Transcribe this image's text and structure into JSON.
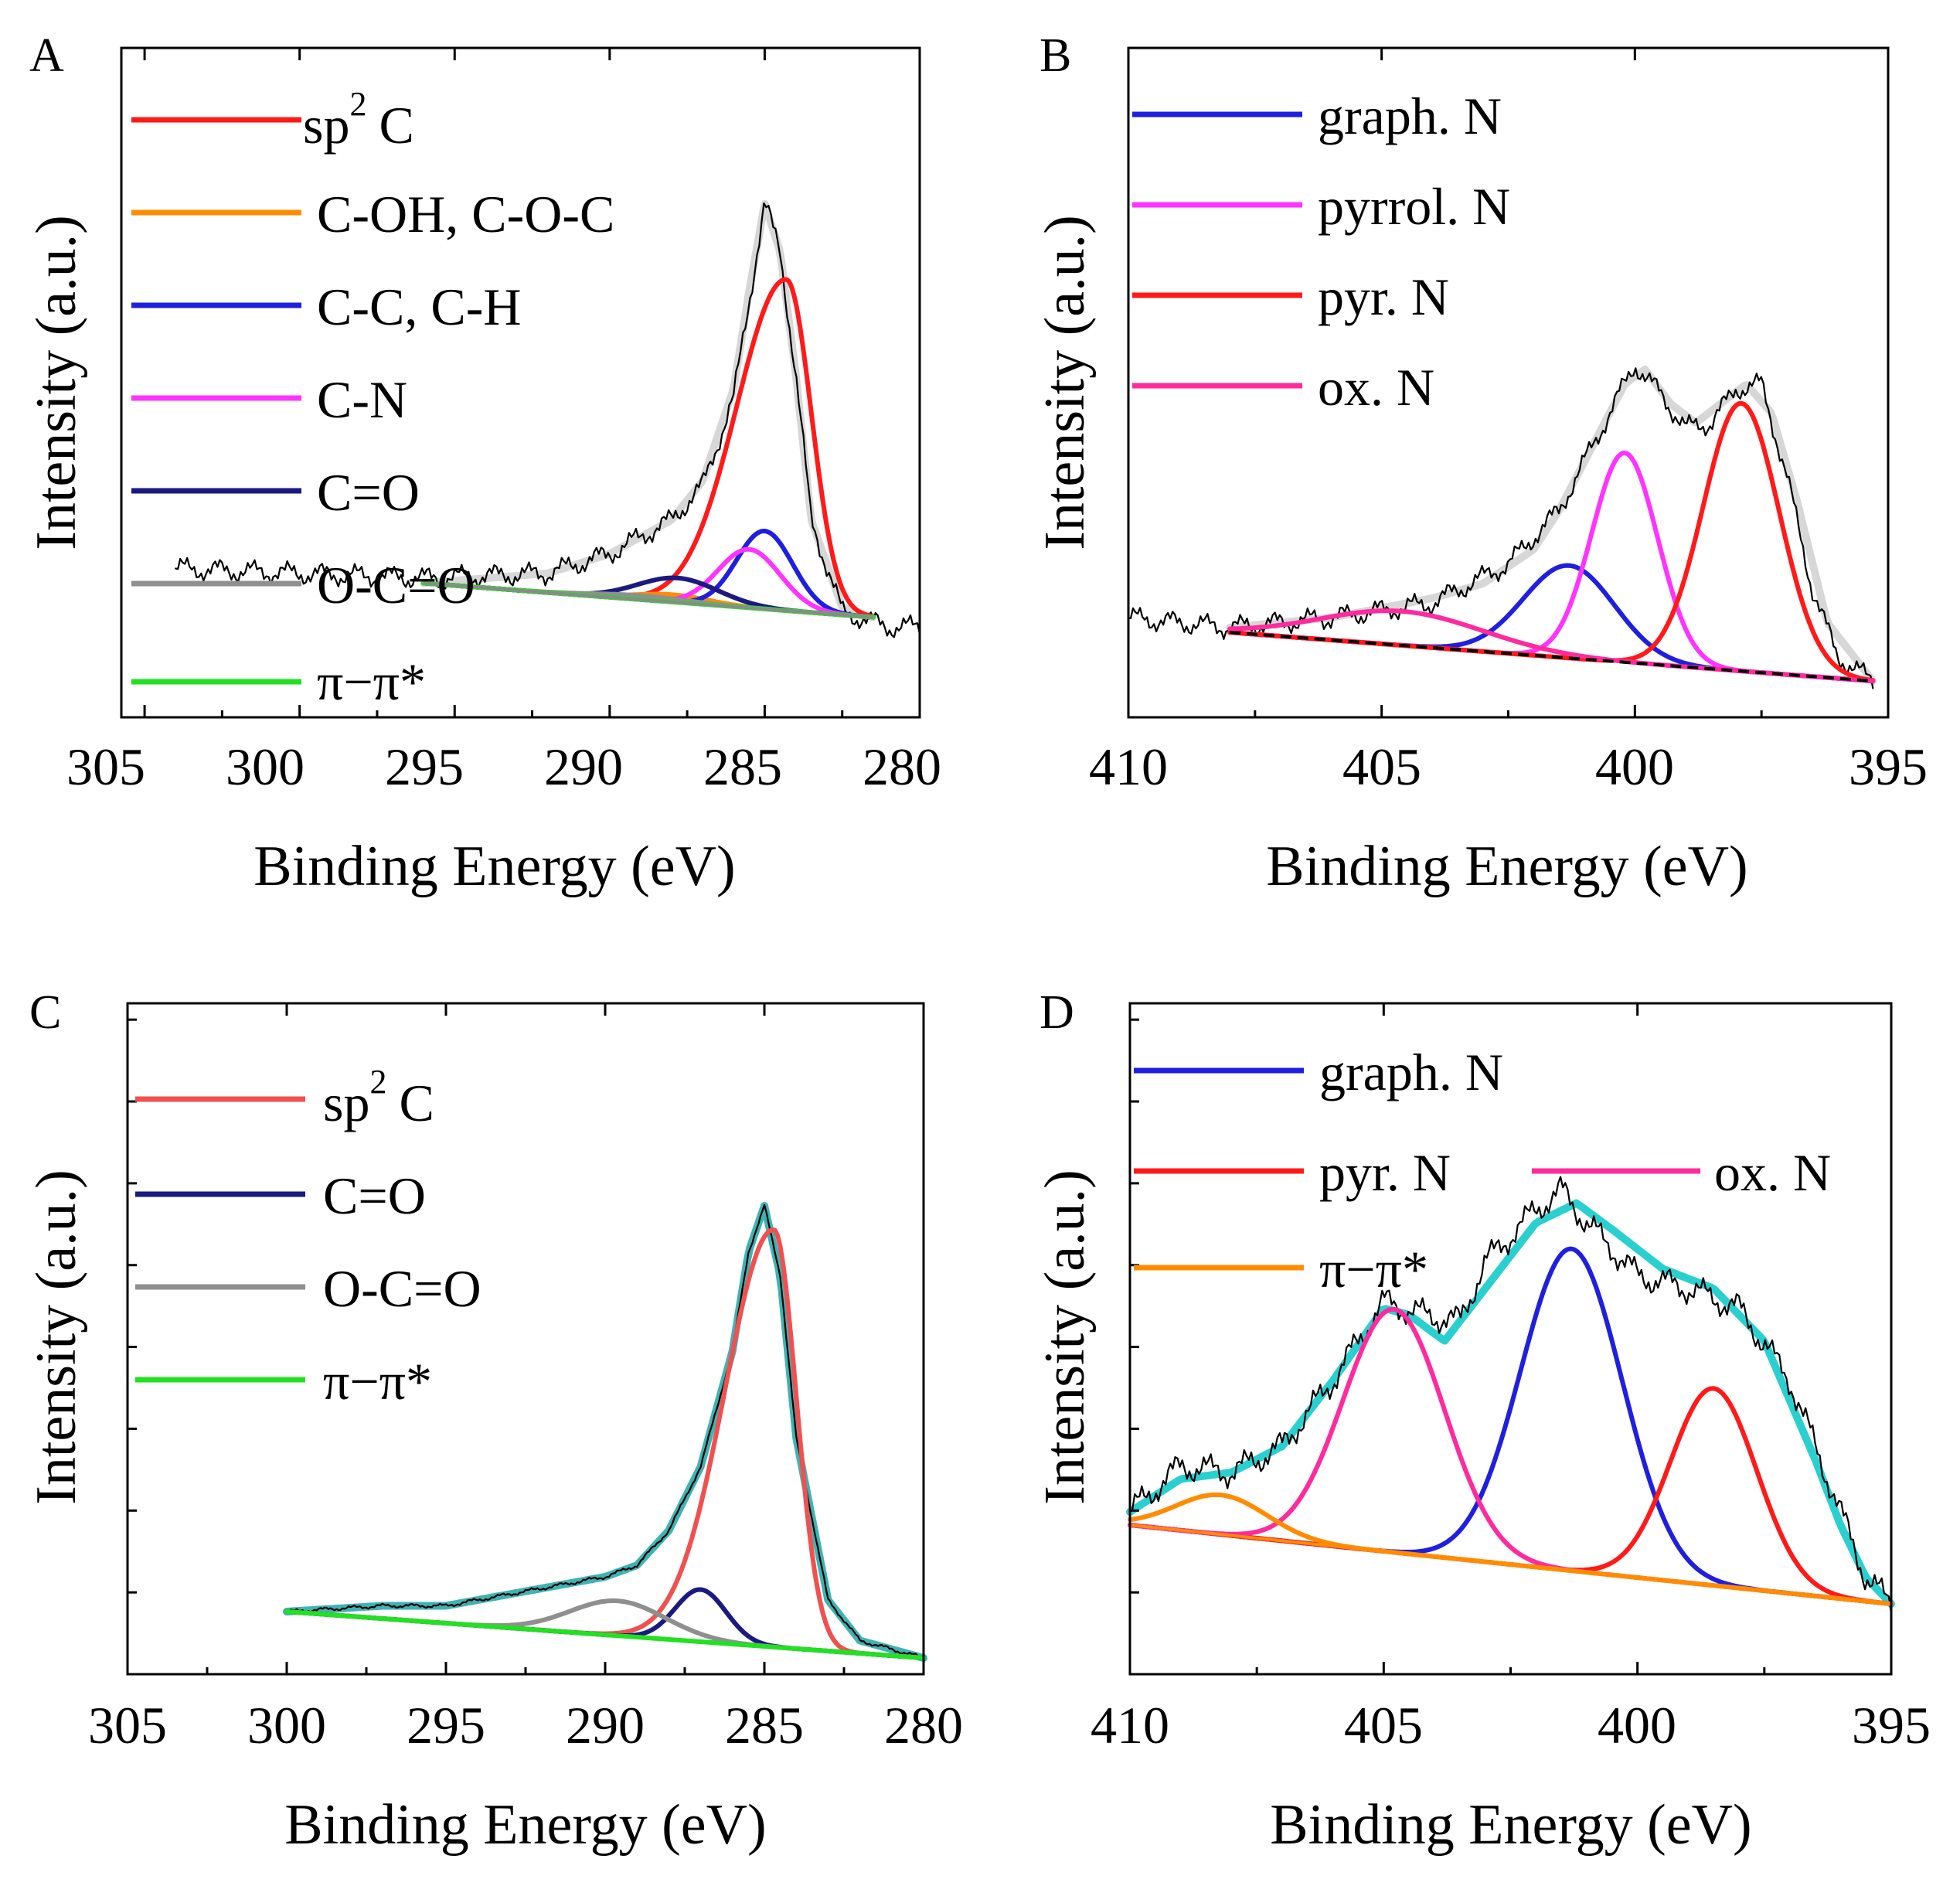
{
  "chart_data": [
    {
      "panel": "A",
      "type": "line",
      "xlabel": "Binding Energy (eV)",
      "ylabel": "Intensity (a.u.)",
      "xlim": [
        305,
        280
      ],
      "ylim": [
        0,
        100
      ],
      "xticks": [
        "305",
        "300",
        "295",
        "290",
        "285",
        "280"
      ],
      "background": {
        "from": [
          296,
          12
        ],
        "to": [
          281.5,
          5
        ],
        "color": "#8a8a8a"
      },
      "raw": {
        "x_start": 304,
        "x_end": 280,
        "color": "#000000",
        "points": [
          [
            304,
            15
          ],
          [
            296,
            13
          ],
          [
            292,
            14
          ],
          [
            290,
            18
          ],
          [
            288,
            25
          ],
          [
            287,
            32
          ],
          [
            286,
            50
          ],
          [
            285.5,
            70
          ],
          [
            285,
            90
          ],
          [
            284.5,
            80
          ],
          [
            284,
            55
          ],
          [
            283.5,
            25
          ],
          [
            282.5,
            6
          ],
          [
            281,
            3
          ],
          [
            280,
            3
          ]
        ]
      },
      "envelope": {
        "x_start": 296,
        "x_end": 281.5,
        "color": "#d7d7d7",
        "points": [
          [
            296,
            12
          ],
          [
            292,
            14
          ],
          [
            290,
            18
          ],
          [
            288,
            25
          ],
          [
            287,
            33
          ],
          [
            286,
            52
          ],
          [
            285.5,
            72
          ],
          [
            285,
            90
          ],
          [
            284.5,
            80
          ],
          [
            284,
            55
          ],
          [
            283.5,
            25
          ],
          [
            282.5,
            7
          ],
          [
            281.5,
            5
          ]
        ]
      },
      "legend_labels": [
        "sp",
        "2",
        "C",
        "C-OH, C-O-C",
        "C-C, C-H",
        "C-N",
        "C=O",
        "O-C=O",
        "π−π*"
      ],
      "series": [
        {
          "name": "sp2 C",
          "color": "#ff1a1a",
          "center": 284.3,
          "amp": 68,
          "width": 0.8,
          "asym": 2.0
        },
        {
          "name": "C-OH, C-O-C",
          "color": "#ff8c00",
          "center": 288.0,
          "amp": 1.5,
          "width": 1.2
        },
        {
          "name": "C-C, C-H",
          "color": "#1f1fe0",
          "center": 285.0,
          "amp": 16,
          "width": 0.9
        },
        {
          "name": "C-N",
          "color": "#ff33ff",
          "center": 285.5,
          "amp": 12,
          "width": 1.0
        },
        {
          "name": "C=O",
          "color": "#1a1a80",
          "center": 287.8,
          "amp": 5,
          "width": 1.3
        },
        {
          "name": "O-C=O",
          "color": "#8f8f8f",
          "center": 289.0,
          "amp": 0.8,
          "width": 1.5
        },
        {
          "name": "π−π*",
          "color": "#22e022",
          "center": 292.0,
          "amp": 0,
          "width": 1.0
        }
      ]
    },
    {
      "panel": "B",
      "type": "line",
      "xlabel": "Binding Energy (eV)",
      "ylabel": "Intensity (a.u.)",
      "xlim": [
        410,
        395
      ],
      "ylim": [
        0,
        100
      ],
      "xticks": [
        "410",
        "405",
        "400",
        "395"
      ],
      "background": {
        "from": [
          408,
          13
        ],
        "to": [
          395.3,
          3
        ],
        "color": "#000000"
      },
      "raw": {
        "x_start": 410,
        "x_end": 395.3,
        "color": "#000000",
        "points": [
          [
            410,
            16
          ],
          [
            408,
            14
          ],
          [
            406,
            16
          ],
          [
            404,
            19
          ],
          [
            402.5,
            27
          ],
          [
            401.5,
            38
          ],
          [
            400.5,
            58
          ],
          [
            400,
            68
          ],
          [
            399.5,
            62
          ],
          [
            399,
            55
          ],
          [
            398.5,
            56
          ],
          [
            398,
            63
          ],
          [
            397.5,
            64
          ],
          [
            397,
            45
          ],
          [
            396.5,
            22
          ],
          [
            396,
            8
          ],
          [
            395.3,
            3
          ]
        ]
      },
      "envelope": {
        "x_start": 408,
        "x_end": 395.3,
        "color": "#d7d7d7",
        "points": [
          [
            408,
            14
          ],
          [
            406,
            16
          ],
          [
            404,
            20
          ],
          [
            403,
            23
          ],
          [
            402,
            30
          ],
          [
            401.5,
            38
          ],
          [
            400.8,
            52
          ],
          [
            400.2,
            64
          ],
          [
            399.8,
            67
          ],
          [
            399.3,
            60
          ],
          [
            398.8,
            56
          ],
          [
            398.3,
            60
          ],
          [
            397.8,
            64
          ],
          [
            397.3,
            58
          ],
          [
            396.8,
            40
          ],
          [
            396.2,
            15
          ],
          [
            395.3,
            3
          ]
        ]
      },
      "legend_labels": [
        "graph. N",
        "pyrrol. N",
        "pyr. N",
        "ox. N"
      ],
      "series": [
        {
          "name": "graph. N",
          "color": "#1f1fe0",
          "center": 401.3,
          "amp": 19,
          "width": 0.9
        },
        {
          "name": "pyrrol. N",
          "color": "#ff33ff",
          "center": 400.2,
          "amp": 43,
          "width": 0.65
        },
        {
          "name": "pyr. N",
          "color": "#ff1a1a",
          "center": 397.9,
          "amp": 55,
          "width": 0.75
        },
        {
          "name": "ox. N",
          "color": "#ff2a9d",
          "center": 404.6,
          "amp": 7,
          "width": 1.6
        }
      ]
    },
    {
      "panel": "C",
      "type": "line",
      "xlabel": "Binding Energy (eV)",
      "ylabel": "Intensity (a.u.)",
      "xlim": [
        305,
        280
      ],
      "ylim": [
        0,
        100
      ],
      "xticks": [
        "305",
        "300",
        "295",
        "290",
        "285",
        "280"
      ],
      "background": {
        "from": [
          300,
          10
        ],
        "to": [
          280,
          2
        ],
        "color": "#22e022"
      },
      "raw": {
        "x_start": 300,
        "x_end": 280,
        "color": "#000000",
        "points": [
          [
            300,
            10
          ],
          [
            297,
            11
          ],
          [
            295,
            11
          ],
          [
            292,
            14
          ],
          [
            290,
            16
          ],
          [
            289,
            18
          ],
          [
            288,
            24
          ],
          [
            287,
            35
          ],
          [
            286,
            55
          ],
          [
            285.5,
            72
          ],
          [
            285,
            80
          ],
          [
            284.5,
            68
          ],
          [
            284,
            40
          ],
          [
            283,
            12
          ],
          [
            282,
            5
          ],
          [
            280,
            2
          ]
        ]
      },
      "envelope": {
        "x_start": 300,
        "x_end": 280,
        "color": "#3fb3b3",
        "points": [
          [
            300,
            10
          ],
          [
            297,
            11
          ],
          [
            295,
            11
          ],
          [
            292,
            14
          ],
          [
            290,
            16
          ],
          [
            289,
            18
          ],
          [
            288,
            24
          ],
          [
            287,
            35
          ],
          [
            286,
            55
          ],
          [
            285.5,
            72
          ],
          [
            285,
            80
          ],
          [
            284.5,
            68
          ],
          [
            284,
            40
          ],
          [
            283,
            12
          ],
          [
            282,
            5
          ],
          [
            280,
            2
          ]
        ]
      },
      "legend_labels": [
        "sp",
        "2",
        "C",
        "C=O",
        "O-C=O",
        "π−π*"
      ],
      "series": [
        {
          "name": "sp2 C",
          "color": "#f05050",
          "center": 284.7,
          "amp": 72,
          "width": 0.7,
          "asym": 2.2
        },
        {
          "name": "C=O",
          "color": "#1a1a80",
          "center": 287.0,
          "amp": 9,
          "width": 0.8
        },
        {
          "name": "O-C=O",
          "color": "#8f8f8f",
          "center": 289.6,
          "amp": 6,
          "width": 1.5
        },
        {
          "name": "π−π*",
          "color": "#22e022",
          "center": 292.0,
          "amp": 0,
          "width": 1.0
        }
      ]
    },
    {
      "panel": "D",
      "type": "line",
      "xlabel": "Binding Energy (eV)",
      "ylabel": "Intensity (a.u.)",
      "xlim": [
        410,
        395
      ],
      "ylim": [
        0,
        100
      ],
      "xticks": [
        "410",
        "405",
        "400",
        "395"
      ],
      "background": {
        "from": [
          410,
          22
        ],
        "to": [
          395,
          10
        ],
        "color": "#ff8c00"
      },
      "raw": {
        "x_start": 410,
        "x_end": 395,
        "color": "#000000",
        "points": [
          [
            410,
            24
          ],
          [
            409,
            31
          ],
          [
            408,
            30
          ],
          [
            407,
            34
          ],
          [
            406,
            44
          ],
          [
            405,
            56
          ],
          [
            404.2,
            54
          ],
          [
            403.5,
            53
          ],
          [
            403,
            62
          ],
          [
            402,
            70
          ],
          [
            401.5,
            73
          ],
          [
            401,
            68
          ],
          [
            400,
            60
          ],
          [
            399,
            58
          ],
          [
            398,
            55
          ],
          [
            397,
            44
          ],
          [
            396,
            24
          ],
          [
            395.5,
            14
          ],
          [
            395,
            10
          ]
        ]
      },
      "envelope": {
        "x_start": 410,
        "x_end": 395,
        "color": "#2ad0d0",
        "points": [
          [
            410,
            24
          ],
          [
            409,
            29
          ],
          [
            408,
            30
          ],
          [
            407,
            34
          ],
          [
            406,
            44
          ],
          [
            405,
            55
          ],
          [
            404.5,
            54
          ],
          [
            403.8,
            50
          ],
          [
            403,
            58
          ],
          [
            402,
            68
          ],
          [
            401.2,
            71
          ],
          [
            400.5,
            67
          ],
          [
            399.5,
            61
          ],
          [
            398.5,
            58
          ],
          [
            397.5,
            50
          ],
          [
            396.5,
            32
          ],
          [
            396,
            22
          ],
          [
            395.5,
            14
          ],
          [
            395,
            10
          ]
        ]
      },
      "legend_labels": [
        "graph. N",
        "pyr. N",
        "ox. N",
        "π−π*"
      ],
      "series": [
        {
          "name": "graph. N",
          "color": "#1f1fe0",
          "center": 401.3,
          "amp": 49,
          "width": 1.0
        },
        {
          "name": "pyr. N",
          "color": "#ff1a1a",
          "center": 398.5,
          "amp": 30,
          "width": 0.85
        },
        {
          "name": "ox. N",
          "color": "#ff2a9d",
          "center": 404.8,
          "amp": 37,
          "width": 1.0
        },
        {
          "name": "π−π*",
          "color": "#ff8c00",
          "center": 408.2,
          "amp": 6,
          "width": 0.9
        }
      ]
    }
  ]
}
